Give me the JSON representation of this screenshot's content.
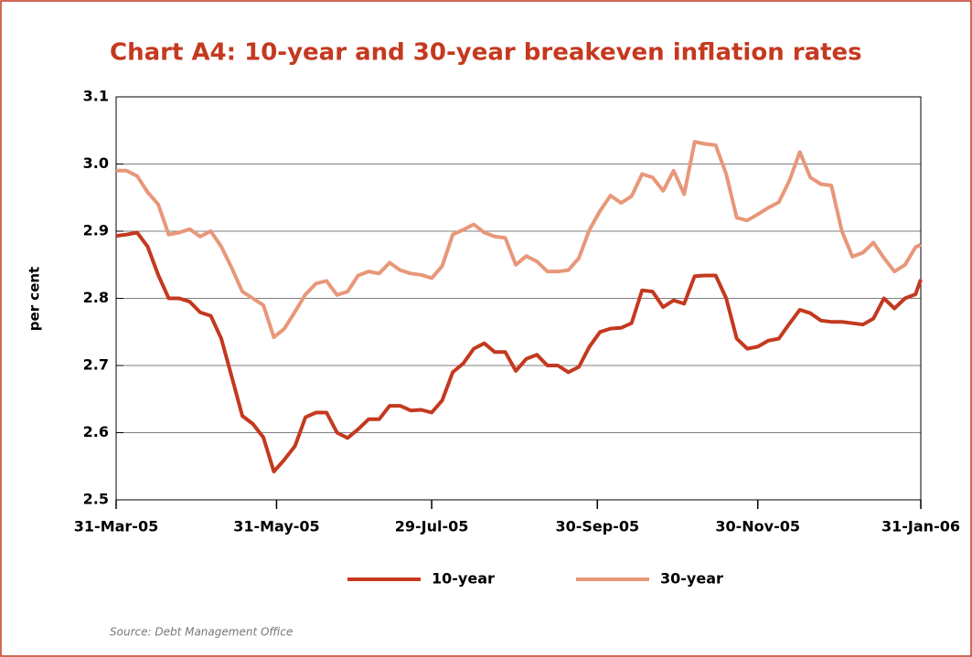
{
  "chart_data": {
    "type": "line",
    "title": "Chart A4: 10-year and 30-year breakeven inflation rates",
    "y_label": "per cent",
    "source": "Source: Debt Management Office",
    "x": [
      "2005-03-31",
      "2005-04-04",
      "2005-04-08",
      "2005-04-12",
      "2005-04-16",
      "2005-04-20",
      "2005-04-24",
      "2005-04-28",
      "2005-05-02",
      "2005-05-06",
      "2005-05-10",
      "2005-05-14",
      "2005-05-18",
      "2005-05-22",
      "2005-05-26",
      "2005-05-30",
      "2005-06-03",
      "2005-06-07",
      "2005-06-11",
      "2005-06-15",
      "2005-06-19",
      "2005-06-23",
      "2005-06-27",
      "2005-07-01",
      "2005-07-05",
      "2005-07-09",
      "2005-07-13",
      "2005-07-17",
      "2005-07-21",
      "2005-07-25",
      "2005-07-29",
      "2005-08-02",
      "2005-08-06",
      "2005-08-10",
      "2005-08-14",
      "2005-08-18",
      "2005-08-22",
      "2005-08-26",
      "2005-08-30",
      "2005-09-03",
      "2005-09-07",
      "2005-09-11",
      "2005-09-15",
      "2005-09-19",
      "2005-09-23",
      "2005-09-27",
      "2005-10-01",
      "2005-10-05",
      "2005-10-09",
      "2005-10-13",
      "2005-10-17",
      "2005-10-21",
      "2005-10-25",
      "2005-10-29",
      "2005-11-02",
      "2005-11-06",
      "2005-11-10",
      "2005-11-14",
      "2005-11-18",
      "2005-11-22",
      "2005-11-26",
      "2005-11-30",
      "2005-12-04",
      "2005-12-08",
      "2005-12-12",
      "2005-12-16",
      "2005-12-20",
      "2005-12-24",
      "2005-12-28",
      "2006-01-01",
      "2006-01-05",
      "2006-01-09",
      "2006-01-13",
      "2006-01-17",
      "2006-01-21",
      "2006-01-25",
      "2006-01-29",
      "2006-01-31"
    ],
    "series": [
      {
        "name": "10-year",
        "color": "#c4391f",
        "values": [
          2.893,
          2.895,
          2.898,
          2.877,
          2.835,
          2.8,
          2.8,
          2.795,
          2.779,
          2.774,
          2.74,
          2.683,
          2.625,
          2.613,
          2.593,
          2.542,
          2.56,
          2.58,
          2.623,
          2.63,
          2.63,
          2.6,
          2.592,
          2.605,
          2.62,
          2.62,
          2.64,
          2.64,
          2.633,
          2.634,
          2.63,
          2.648,
          2.69,
          2.703,
          2.725,
          2.733,
          2.72,
          2.72,
          2.692,
          2.71,
          2.716,
          2.7,
          2.7,
          2.69,
          2.698,
          2.728,
          2.75,
          2.755,
          2.756,
          2.763,
          2.812,
          2.81,
          2.787,
          2.797,
          2.792,
          2.833,
          2.834,
          2.834,
          2.8,
          2.74,
          2.725,
          2.728,
          2.737,
          2.74,
          2.762,
          2.783,
          2.778,
          2.767,
          2.765,
          2.765,
          2.763,
          2.761,
          2.77,
          2.8,
          2.785,
          2.8,
          2.806,
          2.828
        ]
      },
      {
        "name": "30-year",
        "color": "#e8977a",
        "values": [
          2.99,
          2.99,
          2.982,
          2.958,
          2.94,
          2.895,
          2.898,
          2.903,
          2.892,
          2.9,
          2.877,
          2.845,
          2.81,
          2.8,
          2.79,
          2.742,
          2.755,
          2.78,
          2.806,
          2.822,
          2.826,
          2.805,
          2.81,
          2.834,
          2.84,
          2.837,
          2.853,
          2.842,
          2.837,
          2.835,
          2.83,
          2.848,
          2.895,
          2.902,
          2.91,
          2.898,
          2.892,
          2.89,
          2.85,
          2.863,
          2.855,
          2.84,
          2.84,
          2.842,
          2.86,
          2.902,
          2.93,
          2.953,
          2.942,
          2.952,
          2.985,
          2.98,
          2.96,
          2.99,
          2.955,
          3.033,
          3.03,
          3.028,
          2.985,
          2.92,
          2.916,
          2.925,
          2.935,
          2.943,
          2.975,
          3.018,
          2.98,
          2.97,
          2.968,
          2.9,
          2.862,
          2.868,
          2.883,
          2.86,
          2.84,
          2.85,
          2.876,
          2.88
        ]
      }
    ],
    "xlim": [
      "2005-03-31",
      "2006-01-31"
    ],
    "xticks": [
      {
        "value": "2005-03-31",
        "label": "31-Mar-05"
      },
      {
        "value": "2005-05-31",
        "label": "31-May-05"
      },
      {
        "value": "2005-07-29",
        "label": "29-Jul-05"
      },
      {
        "value": "2005-09-30",
        "label": "30-Sep-05"
      },
      {
        "value": "2005-11-30",
        "label": "30-Nov-05"
      },
      {
        "value": "2006-01-31",
        "label": "31-Jan-06"
      }
    ],
    "ylim": [
      2.5,
      3.1
    ],
    "yticks": [
      2.5,
      2.6,
      2.7,
      2.8,
      2.9,
      {
        "value": 3,
        "label": "3.0"
      },
      3.1
    ],
    "grid": true,
    "legend": "bottom"
  }
}
